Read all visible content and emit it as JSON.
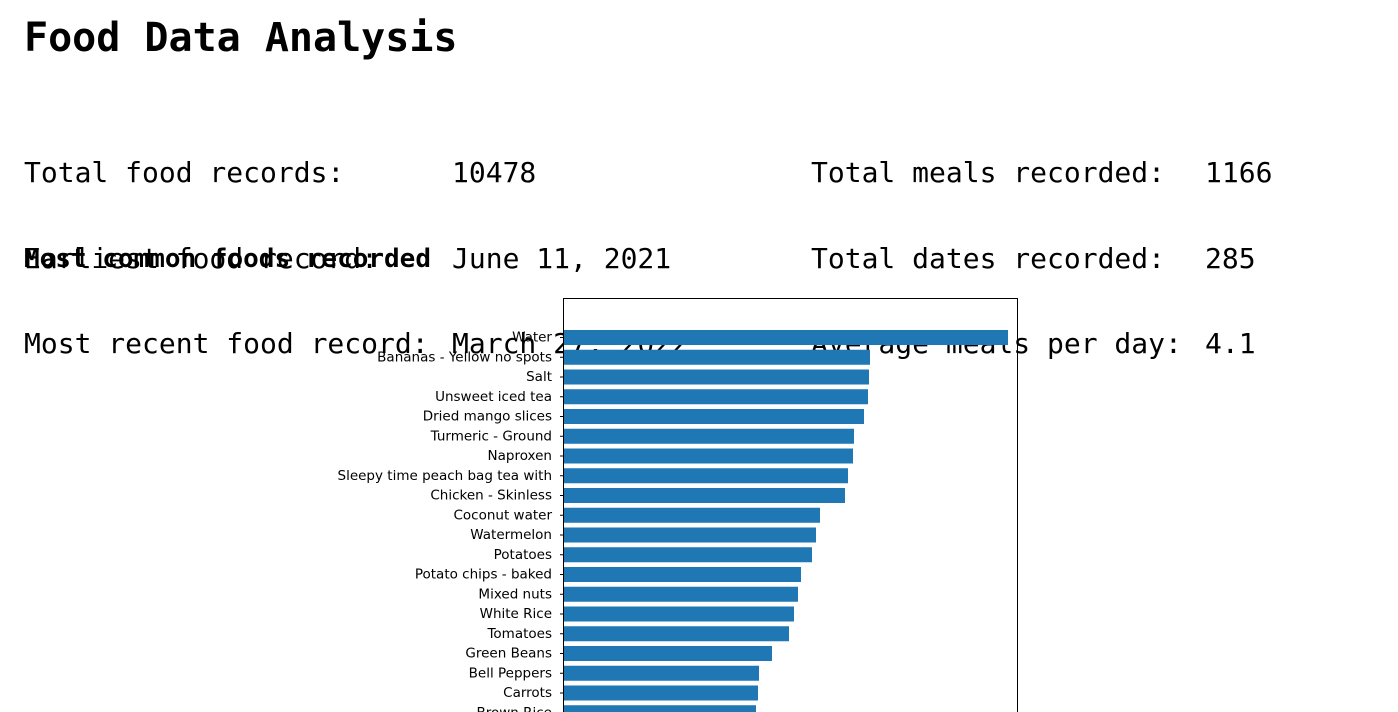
{
  "page": {
    "title": "Food Data Analysis",
    "section_title": "Most common foods recorded"
  },
  "stats": {
    "left": [
      {
        "label": "Total food records:",
        "value": "10478"
      },
      {
        "label": "Earliest food record:",
        "value": "June 11, 2021"
      },
      {
        "label": "Most recent food record:",
        "value": "March 27, 2022"
      }
    ],
    "right": [
      {
        "label": "Total meals recorded:",
        "value": "1166"
      },
      {
        "label": "Total dates recorded:",
        "value": "285"
      },
      {
        "label": "Average meals per day:",
        "value": "4.1"
      }
    ]
  },
  "chart_data": {
    "type": "bar",
    "orientation": "horizontal",
    "bar_color": "#1f77b4",
    "categories": [
      "Water",
      "Bananas - Yellow no spots",
      "Salt",
      "Unsweet iced tea",
      "Dried mango slices",
      "Turmeric - Ground",
      "Naproxen",
      "Sleepy time peach bag tea with",
      "Chicken - Skinless",
      "Coconut water",
      "Watermelon",
      "Potatoes",
      "Potato chips - baked",
      "Mixed nuts",
      "White Rice",
      "Tomatoes",
      "Green Beans",
      "Bell Peppers",
      "Carrots",
      "Brown Rice"
    ],
    "values": [
      444,
      306,
      305,
      304,
      300,
      290,
      289,
      284,
      281,
      256,
      252,
      248,
      237,
      234,
      230,
      225,
      208,
      195,
      194,
      192
    ],
    "grid": false
  }
}
